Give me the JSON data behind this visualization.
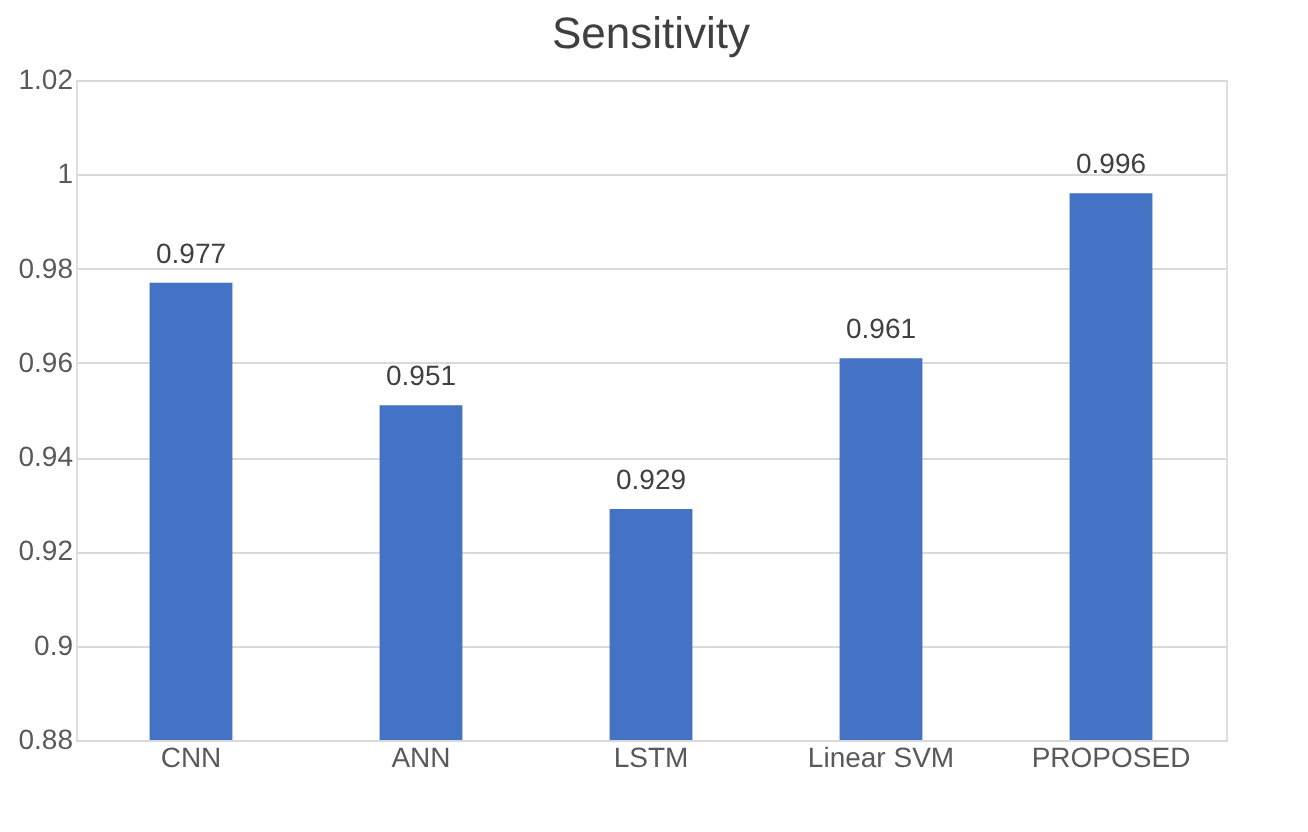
{
  "chart_data": {
    "type": "bar",
    "title": "Sensitivity",
    "categories": [
      "CNN",
      "ANN",
      "LSTM",
      "Linear SVM",
      "PROPOSED"
    ],
    "values": [
      0.977,
      0.951,
      0.929,
      0.961,
      0.996
    ],
    "color": "#4472c4",
    "ylim": [
      0.88,
      1.02
    ],
    "yticks": [
      0.88,
      0.9,
      0.92,
      0.94,
      0.96,
      0.98,
      1,
      1.02
    ],
    "grid": "y",
    "data_labels": true
  }
}
